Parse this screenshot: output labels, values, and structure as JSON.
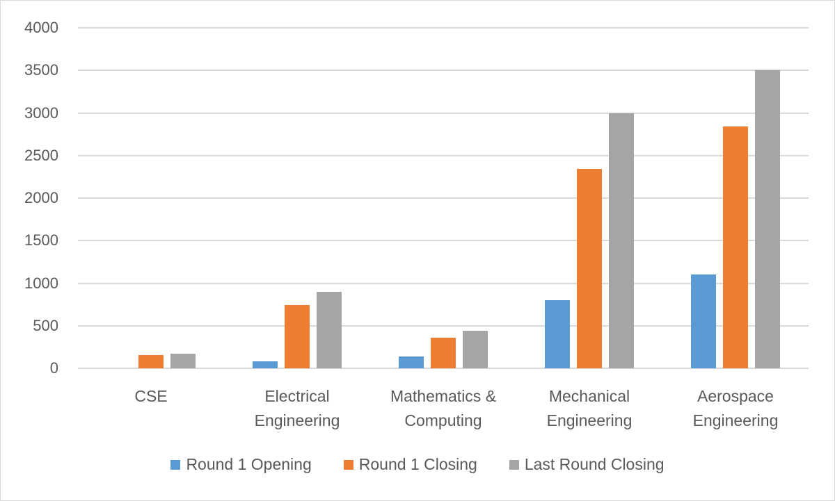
{
  "chart_data": {
    "type": "bar",
    "title": "",
    "xlabel": "",
    "ylabel": "",
    "ylim": [
      0,
      4000
    ],
    "yticks": [
      0,
      500,
      1000,
      1500,
      2000,
      2500,
      3000,
      3500,
      4000
    ],
    "grid": true,
    "legend_position": "bottom",
    "categories": [
      "CSE",
      "Electrical Engineering",
      "Mathematics & Computing",
      "Mechanical Engineering",
      "Aerospace Engineering"
    ],
    "category_lines": [
      [
        "CSE"
      ],
      [
        "Electrical",
        "Engineering"
      ],
      [
        "Mathematics &",
        "Computing"
      ],
      [
        "Mechanical",
        "Engineering"
      ],
      [
        "Aerospace",
        "Engineering"
      ]
    ],
    "series": [
      {
        "name": "Round 1 Opening",
        "color": "#5b9bd5",
        "values": [
          0,
          80,
          140,
          800,
          1100
        ]
      },
      {
        "name": "Round 1 Closing",
        "color": "#ed7d31",
        "values": [
          155,
          740,
          360,
          2340,
          2840
        ]
      },
      {
        "name": "Last Round Closing",
        "color": "#a5a5a5",
        "values": [
          170,
          900,
          440,
          3000,
          3500
        ]
      }
    ]
  }
}
